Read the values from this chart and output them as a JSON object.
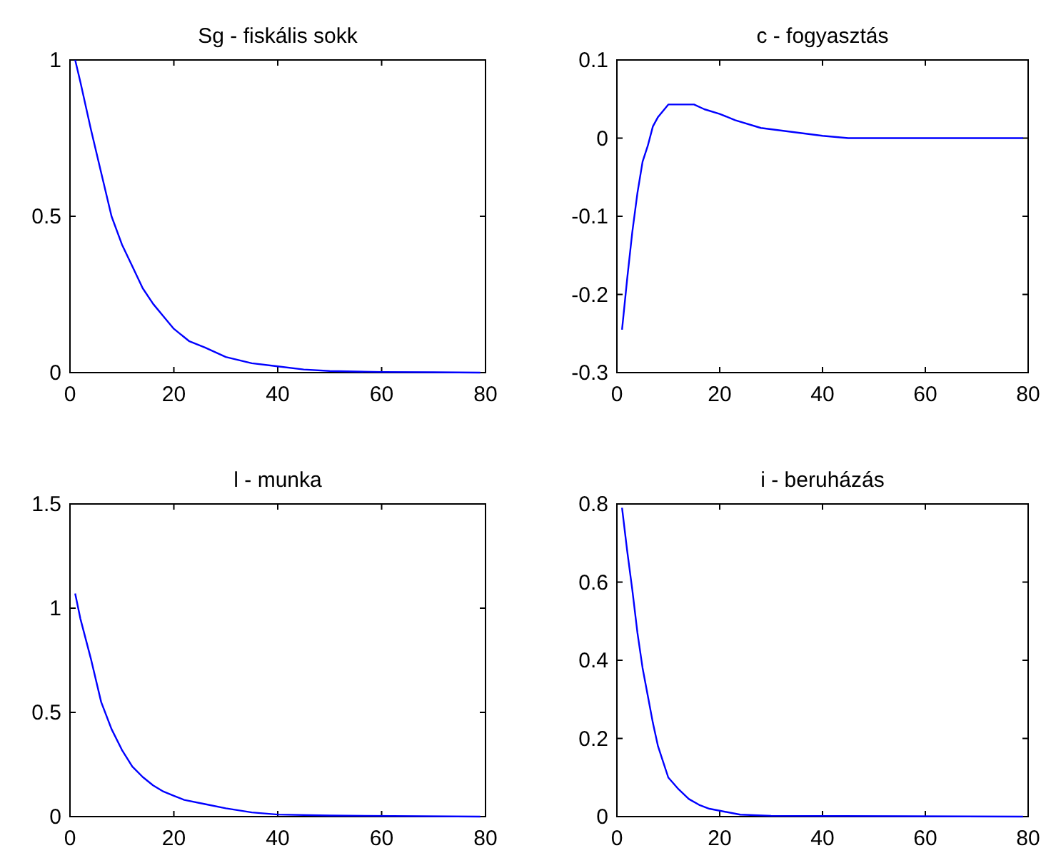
{
  "chart_data": [
    {
      "type": "line",
      "title": "Sg - fiskális sokk",
      "xlim": [
        0,
        80
      ],
      "xticks": [
        0,
        20,
        40,
        60,
        80
      ],
      "ylim": [
        0,
        1
      ],
      "yticks": [
        0,
        0.5,
        1
      ],
      "series": [
        {
          "color": "#0000ff",
          "x": [
            1,
            2,
            4,
            6,
            8,
            10,
            12,
            14,
            16,
            18,
            20,
            23,
            26,
            30,
            35,
            40,
            45,
            50,
            60,
            70,
            79
          ],
          "values": [
            1,
            0.93,
            0.78,
            0.64,
            0.5,
            0.41,
            0.34,
            0.27,
            0.22,
            0.18,
            0.14,
            0.1,
            0.08,
            0.05,
            0.03,
            0.02,
            0.01,
            0.005,
            0.002,
            0.001,
            0
          ]
        }
      ]
    },
    {
      "type": "line",
      "title": "c - fogyasztás",
      "xlim": [
        0,
        80
      ],
      "xticks": [
        0,
        20,
        40,
        60,
        80
      ],
      "ylim": [
        -0.3,
        0.1
      ],
      "yticks": [
        -0.3,
        -0.2,
        -0.1,
        0,
        0.1
      ],
      "series": [
        {
          "color": "#0000ff",
          "x": [
            1,
            2,
            3,
            4,
            5,
            6,
            7,
            8,
            10,
            15,
            17,
            20,
            23,
            28,
            34,
            40,
            45,
            60,
            79
          ],
          "values": [
            -0.245,
            -0.18,
            -0.12,
            -0.07,
            -0.03,
            -0.01,
            0.015,
            0.027,
            0.043,
            0.043,
            0.037,
            0.031,
            0.023,
            0.013,
            0.008,
            0.003,
            0,
            0,
            0
          ]
        }
      ]
    },
    {
      "type": "line",
      "title": "l - munka",
      "xlim": [
        0,
        80
      ],
      "xticks": [
        0,
        20,
        40,
        60,
        80
      ],
      "ylim": [
        0,
        1.5
      ],
      "yticks": [
        0,
        0.5,
        1,
        1.5
      ],
      "series": [
        {
          "color": "#0000ff",
          "x": [
            1,
            2,
            4,
            6,
            8,
            10,
            12,
            14,
            16,
            18,
            20,
            22,
            26,
            30,
            35,
            40,
            50,
            79
          ],
          "values": [
            1.07,
            0.95,
            0.76,
            0.55,
            0.42,
            0.32,
            0.24,
            0.19,
            0.15,
            0.12,
            0.1,
            0.08,
            0.06,
            0.04,
            0.02,
            0.01,
            0.005,
            0
          ]
        }
      ]
    },
    {
      "type": "line",
      "title": "i - beruházás",
      "xlim": [
        0,
        80
      ],
      "xticks": [
        0,
        20,
        40,
        60,
        80
      ],
      "ylim": [
        0,
        0.8
      ],
      "yticks": [
        0,
        0.2,
        0.4,
        0.6,
        0.8
      ],
      "series": [
        {
          "color": "#0000ff",
          "x": [
            1,
            2,
            3,
            4,
            5,
            6,
            7,
            8,
            9,
            10,
            12,
            14,
            16,
            18,
            20,
            24,
            30,
            79
          ],
          "values": [
            0.79,
            0.68,
            0.58,
            0.47,
            0.38,
            0.31,
            0.24,
            0.18,
            0.14,
            0.1,
            0.07,
            0.045,
            0.03,
            0.02,
            0.015,
            0.005,
            0.002,
            0
          ]
        }
      ]
    }
  ]
}
